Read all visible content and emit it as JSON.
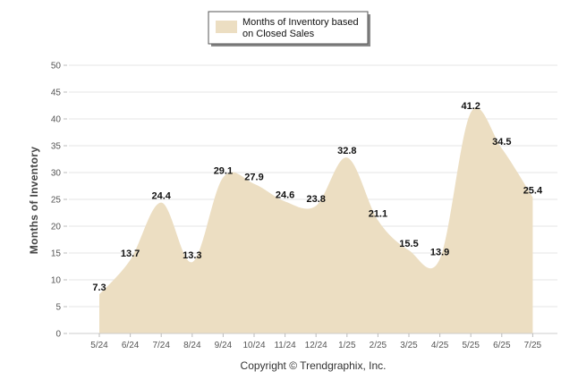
{
  "chart_data": {
    "type": "area",
    "categories": [
      "5/24",
      "6/24",
      "7/24",
      "8/24",
      "9/24",
      "10/24",
      "11/24",
      "12/24",
      "1/25",
      "2/25",
      "3/25",
      "4/25",
      "5/25",
      "6/25",
      "7/25"
    ],
    "series": [
      {
        "name": "Months of Inventory based on Closed Sales",
        "values": [
          7.3,
          13.7,
          24.4,
          13.3,
          29.1,
          27.9,
          24.6,
          23.8,
          32.8,
          21.1,
          15.5,
          13.9,
          41.2,
          34.5,
          25.4
        ],
        "color": "#ecdec2"
      }
    ],
    "ylabel": "Months of Inventory",
    "xlabel": "",
    "ylim": [
      0,
      50
    ],
    "yticks": [
      0,
      5,
      10,
      15,
      20,
      25,
      30,
      35,
      40,
      45,
      50
    ],
    "grid": true,
    "legend": "top-center",
    "legend_lines": [
      "Months of Inventory based",
      "on Closed Sales"
    ],
    "copyright": "Copyright © Trendgraphix, Inc."
  }
}
